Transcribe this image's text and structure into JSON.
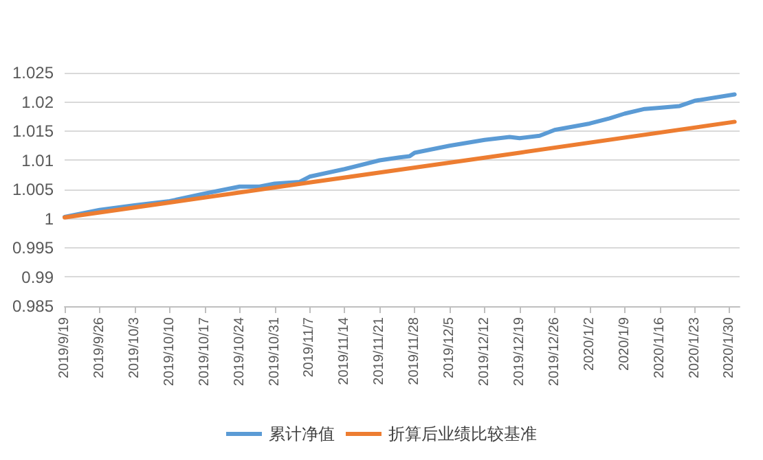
{
  "chart_data": {
    "type": "line",
    "xlim": [
      "2019-09-19",
      "2020-02-01"
    ],
    "xticks": [
      {
        "value": "2019-09-19",
        "label": "2019/9/19"
      },
      {
        "value": "2019-09-26",
        "label": "2019/9/26"
      },
      {
        "value": "2019-10-03",
        "label": "2019/10/3"
      },
      {
        "value": "2019-10-10",
        "label": "2019/10/10"
      },
      {
        "value": "2019-10-17",
        "label": "2019/10/17"
      },
      {
        "value": "2019-10-24",
        "label": "2019/10/24"
      },
      {
        "value": "2019-10-31",
        "label": "2019/10/31"
      },
      {
        "value": "2019-11-07",
        "label": "2019/11/7"
      },
      {
        "value": "2019-11-14",
        "label": "2019/11/14"
      },
      {
        "value": "2019-11-21",
        "label": "2019/11/21"
      },
      {
        "value": "2019-11-28",
        "label": "2019/11/28"
      },
      {
        "value": "2019-12-05",
        "label": "2019/12/5"
      },
      {
        "value": "2019-12-12",
        "label": "2019/12/12"
      },
      {
        "value": "2019-12-19",
        "label": "2019/12/19"
      },
      {
        "value": "2019-12-26",
        "label": "2019/12/26"
      },
      {
        "value": "2020-01-02",
        "label": "2020/1/2"
      },
      {
        "value": "2020-01-09",
        "label": "2020/1/9"
      },
      {
        "value": "2020-01-16",
        "label": "2020/1/16"
      },
      {
        "value": "2020-01-23",
        "label": "2020/1/23"
      },
      {
        "value": "2020-01-30",
        "label": "2020/1/30"
      }
    ],
    "ylim": [
      0.985,
      1.025
    ],
    "yticks": [
      0.985,
      0.99,
      0.995,
      1,
      1.005,
      1.01,
      1.015,
      1.02,
      1.025
    ],
    "series": [
      {
        "name": "累计净值",
        "color": "#5b9bd5",
        "x": [
          "2019-09-19",
          "2019-09-26",
          "2019-10-03",
          "2019-10-10",
          "2019-10-17",
          "2019-10-24",
          "2019-10-28",
          "2019-10-31",
          "2019-11-05",
          "2019-11-07",
          "2019-11-14",
          "2019-11-21",
          "2019-11-25",
          "2019-11-27",
          "2019-11-28",
          "2019-12-05",
          "2019-12-12",
          "2019-12-17",
          "2019-12-19",
          "2019-12-23",
          "2019-12-26",
          "2020-01-02",
          "2020-01-06",
          "2020-01-09",
          "2020-01-13",
          "2020-01-16",
          "2020-01-20",
          "2020-01-23",
          "2020-01-31"
        ],
        "values": [
          1.0003,
          1.0015,
          1.0023,
          1.003,
          1.0043,
          1.0055,
          1.0055,
          1.006,
          1.0063,
          1.0072,
          1.0085,
          1.01,
          1.0105,
          1.0107,
          1.0113,
          1.0125,
          1.0135,
          1.014,
          1.0138,
          1.0142,
          1.0152,
          1.0163,
          1.0172,
          1.018,
          1.0188,
          1.019,
          1.0193,
          1.0202,
          1.0213
        ]
      },
      {
        "name": "折算后业绩比较基准",
        "color": "#ed7d31",
        "x": [
          "2019-09-19",
          "2019-11-07",
          "2019-12-19",
          "2020-01-31"
        ],
        "values": [
          1.0002,
          1.0062,
          1.0113,
          1.0166
        ]
      }
    ],
    "grid": "y",
    "legend": "bottom",
    "marker": "none",
    "line_style": "solid"
  }
}
